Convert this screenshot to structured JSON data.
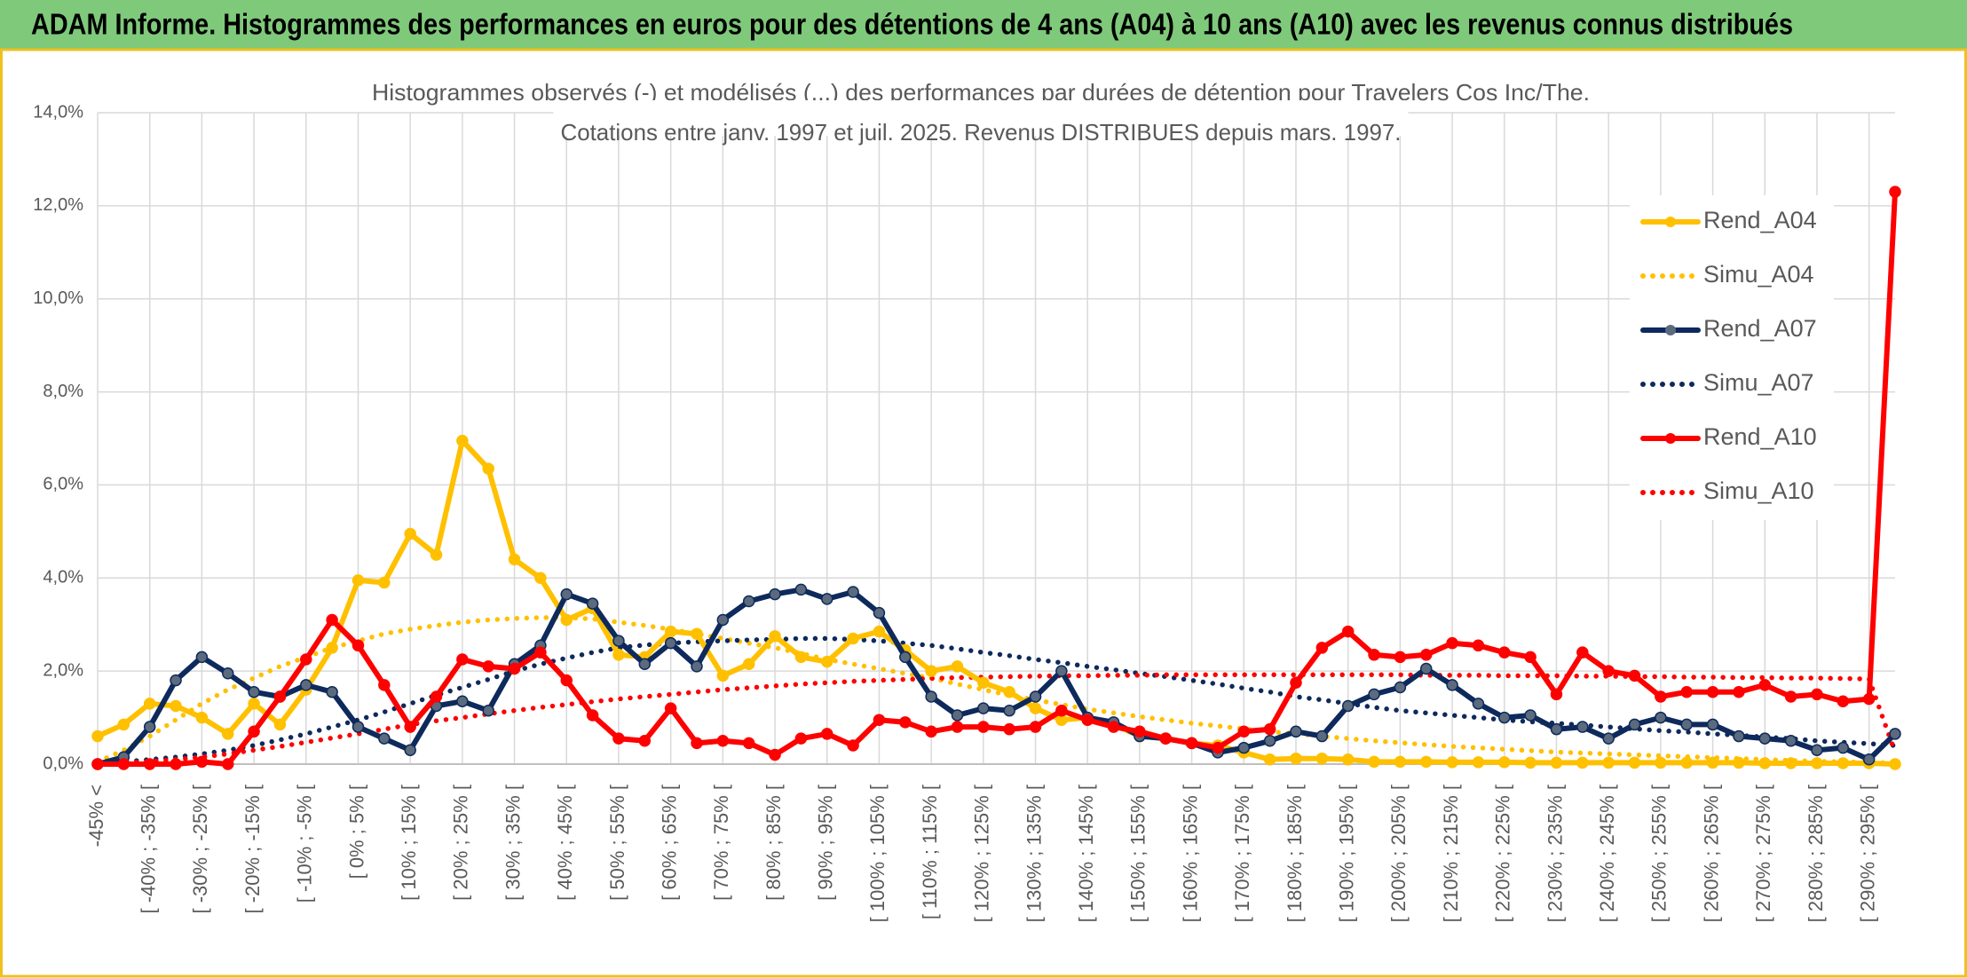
{
  "header": {
    "title": "ADAM Informe. Histogrammes des performances en euros pour des détentions de 4 ans (A04) à 10 ans (A10) avec les revenus connus distribués"
  },
  "chart_data": {
    "type": "line",
    "title": [
      "Histogrammes observés (-) et modélisés (...) des performances par durées de détention pour Travelers Cos Inc/The.",
      "Cotations entre janv. 1997 et juil. 2025. Revenus DISTRIBUES depuis mars. 1997."
    ],
    "categories": [
      "-45% <",
      null,
      "[ -40% ; -35% [",
      null,
      "[ -30% ; -25% [",
      null,
      "[ -20% ; -15% [",
      null,
      "[ -10% ; -5% [",
      null,
      "[ 0% ; 5% [",
      null,
      "[ 10% ; 15% [",
      null,
      "[ 20% ; 25% [",
      null,
      "[ 30% ; 35% [",
      null,
      "[ 40% ; 45% [",
      null,
      "[ 50% ; 55% [",
      null,
      "[ 60% ; 65% [",
      null,
      "[ 70% ; 75% [",
      null,
      "[ 80% ; 85% [",
      null,
      "[ 90% ; 95% [",
      null,
      "[ 100% ; 105% [",
      null,
      "[ 110% ; 115% [",
      null,
      "[ 120% ; 125% [",
      null,
      "[ 130% ; 135% [",
      null,
      "[ 140% ; 145% [",
      null,
      "[ 150% ; 155% [",
      null,
      "[ 160% ; 165% [",
      null,
      "[ 170% ; 175% [",
      null,
      "[ 180% ; 185% [",
      null,
      "[ 190% ; 195% [",
      null,
      "[ 200% ; 205% [",
      null,
      "[ 210% ; 215% [",
      null,
      "[ 220% ; 225% [",
      null,
      "[ 230% ; 235% [",
      null,
      "[ 240% ; 245% [",
      null,
      "[ 250% ; 255% [",
      null,
      "[ 260% ; 265% [",
      null,
      "[ 270% ; 275% [",
      null,
      "[ 280% ; 285% [",
      null,
      "[ 290% ; 295% [",
      null
    ],
    "ylim": [
      0,
      14
    ],
    "yticks": [
      {
        "value": 0,
        "label": "0,0%"
      },
      {
        "value": 2,
        "label": "2,0%"
      },
      {
        "value": 4,
        "label": "4,0%"
      },
      {
        "value": 6,
        "label": "6,0%"
      },
      {
        "value": 8,
        "label": "8,0%"
      },
      {
        "value": 10,
        "label": "10,0%"
      },
      {
        "value": 12,
        "label": "12,0%"
      },
      {
        "value": 14,
        "label": "14,0%"
      }
    ],
    "grid": true,
    "legend_position": "right",
    "series": [
      {
        "name": "Rend_A04",
        "color": "#ffc000",
        "style": "solid",
        "markers": true,
        "values": [
          0.6,
          0.85,
          1.3,
          1.25,
          1.0,
          0.65,
          1.3,
          0.85,
          1.6,
          2.5,
          3.95,
          3.9,
          4.95,
          4.5,
          6.95,
          6.35,
          4.4,
          4.0,
          3.1,
          3.35,
          2.35,
          2.3,
          2.85,
          2.8,
          1.9,
          2.15,
          2.75,
          2.3,
          2.2,
          2.7,
          2.85,
          2.45,
          2.0,
          2.1,
          1.75,
          1.55,
          1.2,
          0.95,
          1.0,
          0.85,
          0.6,
          0.55,
          0.45,
          0.4,
          0.25,
          0.1,
          0.12,
          0.12,
          0.1,
          0.05,
          0.05,
          0.05,
          0.04,
          0.04,
          0.04,
          0.03,
          0.03,
          0.03,
          0.03,
          0.03,
          0.03,
          0.03,
          0.03,
          0.03,
          0.02,
          0.02,
          0.02,
          0.02,
          0.02,
          0.0
        ]
      },
      {
        "name": "Simu_A04",
        "color": "#ffc000",
        "style": "dotted",
        "markers": false,
        "values": [
          0.05,
          0.3,
          0.6,
          0.95,
          1.3,
          1.6,
          1.85,
          2.1,
          2.3,
          2.5,
          2.65,
          2.8,
          2.9,
          2.98,
          3.05,
          3.1,
          3.13,
          3.15,
          3.15,
          3.12,
          3.05,
          2.98,
          2.9,
          2.8,
          2.7,
          2.6,
          2.5,
          2.38,
          2.25,
          2.15,
          2.05,
          1.95,
          1.85,
          1.72,
          1.6,
          1.48,
          1.38,
          1.28,
          1.18,
          1.1,
          1.02,
          0.95,
          0.88,
          0.82,
          0.76,
          0.7,
          0.65,
          0.6,
          0.55,
          0.5,
          0.46,
          0.42,
          0.38,
          0.35,
          0.32,
          0.29,
          0.26,
          0.24,
          0.22,
          0.2,
          0.18,
          0.16,
          0.14,
          0.12,
          0.1,
          0.08,
          0.06,
          0.05,
          0.04,
          0.02
        ]
      },
      {
        "name": "Rend_A07",
        "color": "#0e2a5c",
        "style": "solid",
        "markers": true,
        "values": [
          0.0,
          0.15,
          0.8,
          1.8,
          2.3,
          1.95,
          1.55,
          1.45,
          1.7,
          1.55,
          0.8,
          0.55,
          0.3,
          1.25,
          1.35,
          1.15,
          2.15,
          2.55,
          3.65,
          3.45,
          2.65,
          2.15,
          2.6,
          2.1,
          3.1,
          3.5,
          3.65,
          3.75,
          3.55,
          3.7,
          3.25,
          2.3,
          1.45,
          1.05,
          1.2,
          1.15,
          1.45,
          2.0,
          1.0,
          0.9,
          0.6,
          0.55,
          0.45,
          0.25,
          0.35,
          0.5,
          0.7,
          0.6,
          1.25,
          1.5,
          1.65,
          2.05,
          1.7,
          1.3,
          1.0,
          1.05,
          0.75,
          0.8,
          0.55,
          0.85,
          1.0,
          0.85,
          0.85,
          0.6,
          0.55,
          0.5,
          0.3,
          0.35,
          0.1,
          0.65
        ]
      },
      {
        "name": "Simu_A07",
        "color": "#0e2a5c",
        "style": "dotted",
        "markers": false,
        "values": [
          0,
          0.05,
          0.1,
          0.15,
          0.22,
          0.3,
          0.4,
          0.52,
          0.65,
          0.8,
          0.95,
          1.12,
          1.3,
          1.48,
          1.65,
          1.82,
          2.0,
          2.15,
          2.28,
          2.4,
          2.5,
          2.56,
          2.6,
          2.63,
          2.65,
          2.67,
          2.68,
          2.7,
          2.7,
          2.68,
          2.65,
          2.6,
          2.55,
          2.48,
          2.4,
          2.33,
          2.25,
          2.18,
          2.1,
          2.03,
          1.95,
          1.88,
          1.8,
          1.72,
          1.63,
          1.55,
          1.45,
          1.38,
          1.3,
          1.22,
          1.15,
          1.1,
          1.05,
          1.0,
          0.95,
          0.91,
          0.88,
          0.84,
          0.8,
          0.76,
          0.72,
          0.69,
          0.65,
          0.62,
          0.58,
          0.55,
          0.5,
          0.47,
          0.44,
          0.4
        ]
      },
      {
        "name": "Rend_A10",
        "color": "#ff0000",
        "style": "solid",
        "markers": true,
        "values": [
          0.0,
          0.0,
          0.0,
          0.0,
          0.05,
          0.0,
          0.7,
          1.45,
          2.25,
          3.1,
          2.55,
          1.7,
          0.8,
          1.45,
          2.25,
          2.1,
          2.05,
          2.4,
          1.8,
          1.05,
          0.55,
          0.5,
          1.2,
          0.45,
          0.5,
          0.45,
          0.2,
          0.55,
          0.65,
          0.4,
          0.95,
          0.9,
          0.7,
          0.8,
          0.8,
          0.75,
          0.8,
          1.15,
          0.95,
          0.8,
          0.7,
          0.55,
          0.45,
          0.35,
          0.7,
          0.75,
          1.75,
          2.5,
          2.85,
          2.35,
          2.3,
          2.35,
          2.6,
          2.55,
          2.4,
          2.3,
          1.5,
          2.4,
          2.0,
          1.9,
          1.45,
          1.55,
          1.55,
          1.55,
          1.7,
          1.45,
          1.5,
          1.35,
          1.4,
          12.3
        ]
      },
      {
        "name": "Simu_A10",
        "color": "#ff0000",
        "style": "dotted",
        "markers": false,
        "values": [
          0,
          0.03,
          0.06,
          0.1,
          0.15,
          0.22,
          0.3,
          0.38,
          0.47,
          0.56,
          0.65,
          0.75,
          0.85,
          0.93,
          1.0,
          1.08,
          1.15,
          1.22,
          1.28,
          1.34,
          1.4,
          1.45,
          1.5,
          1.55,
          1.6,
          1.64,
          1.68,
          1.72,
          1.75,
          1.78,
          1.8,
          1.82,
          1.84,
          1.86,
          1.87,
          1.88,
          1.89,
          1.9,
          1.9,
          1.91,
          1.91,
          1.92,
          1.92,
          1.92,
          1.92,
          1.92,
          1.92,
          1.92,
          1.92,
          1.92,
          1.92,
          1.91,
          1.91,
          1.91,
          1.9,
          1.9,
          1.9,
          1.89,
          1.89,
          1.88,
          1.88,
          1.87,
          1.87,
          1.86,
          1.86,
          1.85,
          1.85,
          1.84,
          1.83,
          0.25
        ]
      }
    ]
  }
}
